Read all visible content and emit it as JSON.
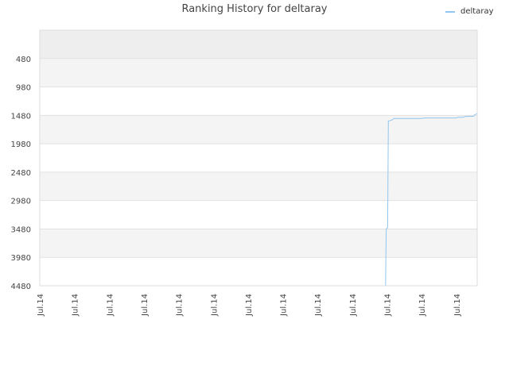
{
  "chart_data": {
    "type": "line",
    "title": "Ranking History for deltaray",
    "xlabel": "",
    "ylabel": "",
    "y_inverted": true,
    "ylim": [
      4480,
      -20
    ],
    "yticks": [
      480,
      980,
      1480,
      1980,
      2480,
      2980,
      3480,
      3980,
      4480
    ],
    "xtick_labels": [
      "Jul.14",
      "Jul.14",
      "Jul.14",
      "Jul.14",
      "Jul.14",
      "Jul.14",
      "Jul.14",
      "Jul.14",
      "Jul.14",
      "Jul.14",
      "Jul.14",
      "Jul.14",
      "Jul.14"
    ],
    "grid": true,
    "legend_position": "top-right",
    "series": [
      {
        "name": "deltaray",
        "color": "#90c6f0",
        "points": [
          [
            0.4,
            4480
          ],
          [
            9.96,
            4480
          ],
          [
            9.98,
            3480
          ],
          [
            10.02,
            3460
          ],
          [
            10.04,
            1580
          ],
          [
            10.1,
            1570
          ],
          [
            10.15,
            1560
          ],
          [
            10.2,
            1535
          ],
          [
            11.0,
            1535
          ],
          [
            11.05,
            1530
          ],
          [
            11.1,
            1525
          ],
          [
            12.0,
            1525
          ],
          [
            12.05,
            1515
          ],
          [
            12.2,
            1515
          ],
          [
            12.25,
            1500
          ],
          [
            12.5,
            1495
          ],
          [
            12.52,
            1475
          ],
          [
            12.55,
            1465
          ],
          [
            12.6,
            1445
          ]
        ]
      }
    ]
  }
}
